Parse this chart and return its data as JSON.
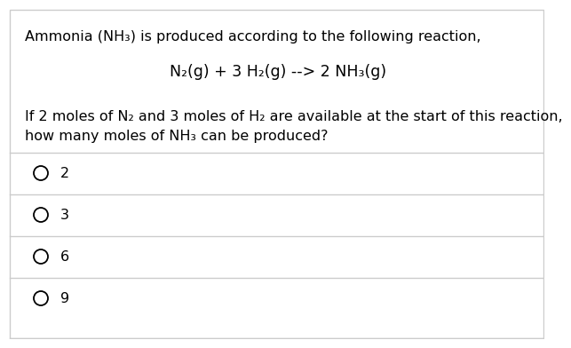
{
  "bg_color": "#ffffff",
  "border_color": "#cccccc",
  "text_color": "#000000",
  "line1": "Ammonia (NH₃) is produced according to the following reaction,",
  "equation": "N₂(g) + 3 H₂(g) --> 2 NH₃(g)",
  "question_line1": "If 2 moles of N₂ and 3 moles of H₂ are available at the start of this reaction,",
  "question_line2": "how many moles of NH₃ can be produced?",
  "options": [
    "2",
    "3",
    "6",
    "9"
  ],
  "font_size_text": 11.5,
  "font_size_eq": 12.5
}
